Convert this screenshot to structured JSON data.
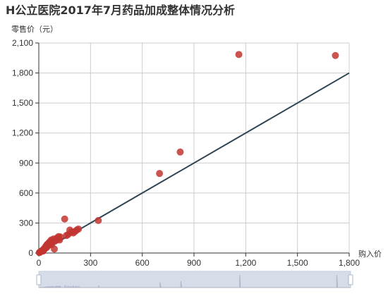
{
  "chart_data": {
    "type": "scatter",
    "title": "H公立医院2017年7月药品加成整体情况分析",
    "xlabel": "购入价",
    "ylabel": "零售价（元）",
    "xlim": [
      0,
      1800
    ],
    "ylim": [
      0,
      2100
    ],
    "x_ticks": [
      "0",
      "300",
      "600",
      "900",
      "1,200",
      "1,500",
      "1,800"
    ],
    "y_ticks": [
      "0",
      "300",
      "600",
      "900",
      "1,200",
      "1,500",
      "1,800",
      "2,100"
    ],
    "grid": true,
    "point_color": "#c23531",
    "line_color": "#2f4554",
    "reference_line": {
      "from": [
        0,
        0
      ],
      "to": [
        1800,
        1800
      ]
    },
    "points": [
      [
        3,
        4
      ],
      [
        5,
        7
      ],
      [
        8,
        10
      ],
      [
        10,
        12
      ],
      [
        12,
        15
      ],
      [
        15,
        18
      ],
      [
        18,
        22
      ],
      [
        20,
        25
      ],
      [
        22,
        28
      ],
      [
        25,
        20
      ],
      [
        28,
        32
      ],
      [
        30,
        38
      ],
      [
        32,
        45
      ],
      [
        35,
        42
      ],
      [
        38,
        60
      ],
      [
        40,
        52
      ],
      [
        42,
        70
      ],
      [
        45,
        55
      ],
      [
        48,
        85
      ],
      [
        50,
        65
      ],
      [
        52,
        90
      ],
      [
        55,
        75
      ],
      [
        58,
        100
      ],
      [
        60,
        80
      ],
      [
        62,
        110
      ],
      [
        65,
        95
      ],
      [
        70,
        115
      ],
      [
        72,
        130
      ],
      [
        75,
        85
      ],
      [
        80,
        110
      ],
      [
        85,
        140
      ],
      [
        90,
        40
      ],
      [
        95,
        120
      ],
      [
        100,
        130
      ],
      [
        105,
        150
      ],
      [
        110,
        140
      ],
      [
        115,
        165
      ],
      [
        120,
        130
      ],
      [
        125,
        160
      ],
      [
        150,
        340
      ],
      [
        160,
        175
      ],
      [
        170,
        185
      ],
      [
        180,
        230
      ],
      [
        190,
        210
      ],
      [
        200,
        200
      ],
      [
        210,
        215
      ],
      [
        220,
        230
      ],
      [
        230,
        240
      ],
      [
        345,
        325
      ],
      [
        700,
        795
      ],
      [
        820,
        1010
      ],
      [
        1160,
        1985
      ],
      [
        1720,
        1975
      ]
    ],
    "dataZoom": {
      "start": 0,
      "end": 100
    }
  }
}
